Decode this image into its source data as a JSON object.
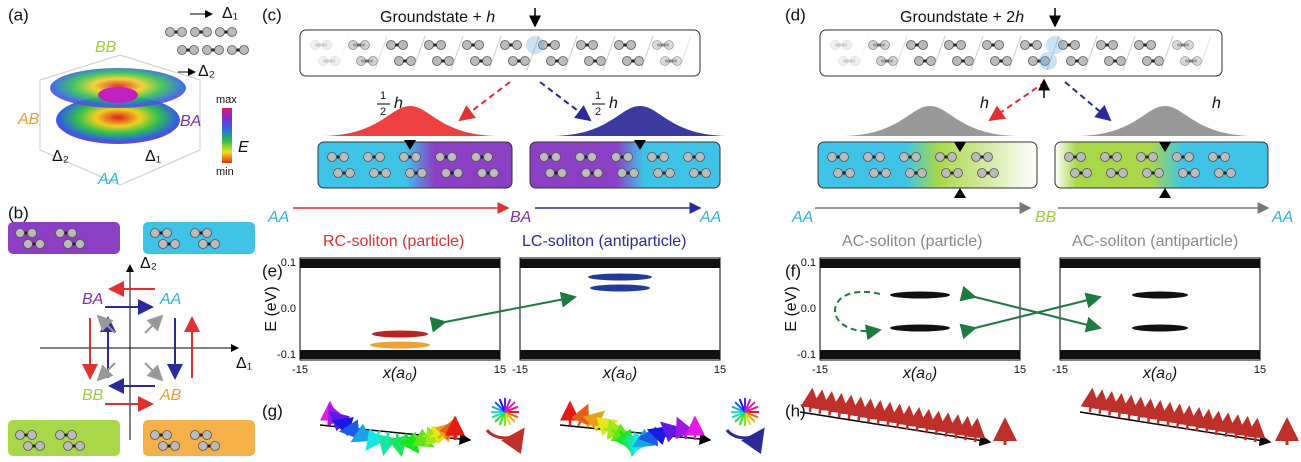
{
  "panel_labels": [
    "(a)",
    "(b)",
    "(c)",
    "(d)",
    "(e)",
    "(f)",
    "(g)",
    "(h)"
  ],
  "stacking": {
    "AA": "AA",
    "AB": "AB",
    "BA": "BA",
    "BB": "BB",
    "d1": "Δ₁",
    "d2": "Δ₂"
  },
  "colorbar": {
    "max": "max",
    "min": "min",
    "symbol": "E"
  },
  "panel_c": {
    "title_prefix": "Groundstate + ",
    "title_variable": "h",
    "fraction_numerator": "1",
    "fraction_denominator": "2",
    "field": "h",
    "left_domain": "AA",
    "middle_domain": "BA",
    "right_domain": "AA",
    "left_soliton": "RC-soliton (particle)",
    "right_soliton": "LC-soliton (antiparticle)"
  },
  "panel_d": {
    "title_prefix": "Groundstate + 2",
    "title_variable": "h",
    "field": "h",
    "left_domain": "AA",
    "middle_domain": "BB",
    "right_domain": "AA",
    "left_soliton": "AC-soliton (particle)",
    "right_soliton": "AC-soliton (antiparticle)"
  },
  "plots": {
    "y_label": "E (eV)",
    "x_label": "x(a₀)",
    "yticks": [
      "0.1",
      "0.0",
      "-0.1"
    ],
    "xticks": [
      "-15",
      "15"
    ]
  }
}
